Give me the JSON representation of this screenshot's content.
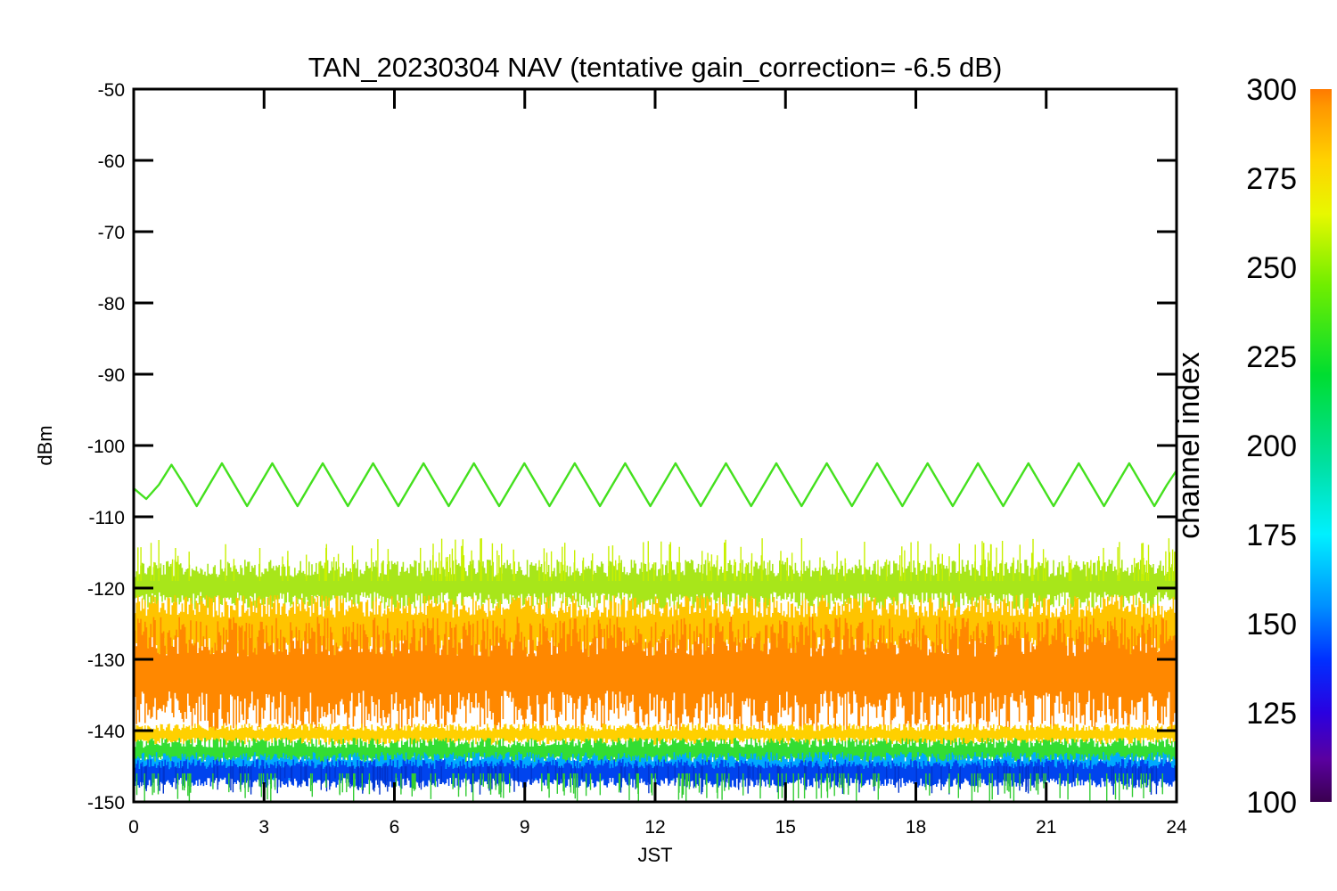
{
  "chart_data": {
    "type": "line",
    "title": "TAN_20230304 NAV (tentative gain_correction= -6.5 dB)",
    "xlabel": "JST",
    "ylabel": "dBm",
    "xlim": [
      0,
      24
    ],
    "ylim": [
      -150,
      -50
    ],
    "x_ticks": [
      0,
      3,
      6,
      9,
      12,
      15,
      18,
      21,
      24
    ],
    "y_ticks": [
      -50,
      -60,
      -70,
      -80,
      -90,
      -100,
      -110,
      -120,
      -130,
      -140,
      -150
    ],
    "grid": false,
    "series": [
      {
        "color": "#44e01e",
        "channel_index": 260,
        "description_values": "sinusoidal diurnal-like oscillation",
        "center_dBm": -105.5,
        "amplitude_dB": 3.0,
        "period_hours": 1.16,
        "x": [
          0,
          0.29,
          0.58,
          0.87,
          1.16,
          1.45,
          1.74,
          2.03,
          2.32,
          2.61,
          2.9,
          3.19,
          3.48,
          3.77,
          4.06,
          4.35,
          4.64,
          4.93,
          5.22,
          5.51,
          5.8,
          6.09,
          6.38,
          6.67,
          6.96,
          7.25,
          7.54,
          7.83,
          8.12,
          8.41,
          8.7,
          8.99,
          9.28,
          9.57,
          9.86,
          10.15,
          10.44,
          10.73,
          11.02,
          11.31,
          11.6,
          11.89,
          12.18,
          12.47,
          12.76,
          13.05,
          13.34,
          13.63,
          13.92,
          14.21,
          14.5,
          14.79,
          15.08,
          15.37,
          15.66,
          15.95,
          16.24,
          16.53,
          16.82,
          17.11,
          17.4,
          17.69,
          17.98,
          18.27,
          18.56,
          18.85,
          19.14,
          19.43,
          19.72,
          20.01,
          20.3,
          20.59,
          20.88,
          21.17,
          21.46,
          21.75,
          22.04,
          22.33,
          22.62,
          22.91,
          23.2,
          23.49,
          23.78,
          24
        ],
        "y": [
          -106,
          -107.5,
          -105.5,
          -102.7,
          -105.5,
          -108.5,
          -105.5,
          -102.5,
          -105.5,
          -108.5,
          -105.5,
          -102.5,
          -105.5,
          -108.5,
          -105.5,
          -102.5,
          -105.5,
          -108.5,
          -105.5,
          -102.5,
          -105.5,
          -108.5,
          -105.5,
          -102.5,
          -105.5,
          -108.5,
          -105.5,
          -102.5,
          -105.5,
          -108.5,
          -105.5,
          -102.5,
          -105.5,
          -108.5,
          -105.5,
          -102.5,
          -105.5,
          -108.5,
          -105.5,
          -102.5,
          -105.5,
          -108.5,
          -105.5,
          -102.5,
          -105.5,
          -108.5,
          -105.5,
          -102.5,
          -105.5,
          -108.5,
          -105.5,
          -102.5,
          -105.5,
          -108.5,
          -105.5,
          -102.5,
          -105.5,
          -108.5,
          -105.5,
          -102.5,
          -105.5,
          -108.5,
          -105.5,
          -102.5,
          -105.5,
          -108.5,
          -105.5,
          -102.5,
          -105.5,
          -108.5,
          -105.5,
          -102.5,
          -105.5,
          -108.5,
          -105.5,
          -102.5,
          -105.5,
          -108.5,
          -105.5,
          -102.5,
          -105.5,
          -108.5,
          -105.5,
          -103.5
        ]
      }
    ],
    "noise_band": {
      "x_range": [
        0,
        24
      ],
      "bands": [
        {
          "color": "#a8e61a",
          "channel_index": 255,
          "y_low": -123,
          "y_high": -116
        },
        {
          "color": "#ffc400",
          "channel_index": 280,
          "y_low": -130,
          "y_high": -121
        },
        {
          "color": "#ff8800",
          "channel_index": 300,
          "y_low": -140,
          "y_high": -124
        },
        {
          "color": "#ffd000",
          "channel_index": 275,
          "y_low": -142,
          "y_high": -139
        },
        {
          "color": "#33dd33",
          "channel_index": 240,
          "y_low": -145,
          "y_high": -141
        },
        {
          "color": "#00aaff",
          "channel_index": 170,
          "y_low": -147,
          "y_high": -143
        },
        {
          "color": "#0044ee",
          "channel_index": 135,
          "y_low": -148,
          "y_high": -144
        }
      ],
      "upper_envelope_dBm": -113,
      "lower_envelope_dBm": -150
    },
    "colorbar": {
      "label": "channel index",
      "range": [
        100,
        300
      ],
      "ticks": [
        "300",
        "275",
        "250",
        "225",
        "200",
        "175",
        "150",
        "125",
        "100"
      ],
      "stops": [
        {
          "value": 100,
          "color": "#3a0050"
        },
        {
          "value": 112,
          "color": "#5a00a0"
        },
        {
          "value": 125,
          "color": "#2a00e0"
        },
        {
          "value": 140,
          "color": "#0030ff"
        },
        {
          "value": 155,
          "color": "#0090ff"
        },
        {
          "value": 175,
          "color": "#00f0ff"
        },
        {
          "value": 195,
          "color": "#00e0a0"
        },
        {
          "value": 220,
          "color": "#00dd30"
        },
        {
          "value": 245,
          "color": "#70ee00"
        },
        {
          "value": 265,
          "color": "#e8f800"
        },
        {
          "value": 280,
          "color": "#ffd200"
        },
        {
          "value": 295,
          "color": "#ff9800"
        },
        {
          "value": 300,
          "color": "#ff7a00"
        }
      ]
    }
  }
}
